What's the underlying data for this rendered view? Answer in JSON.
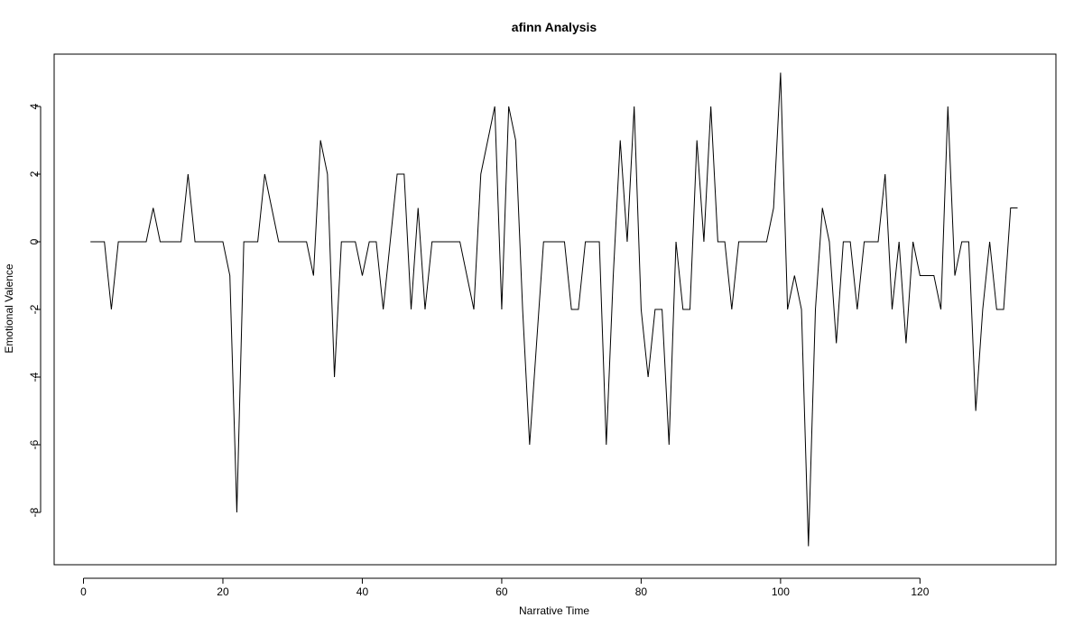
{
  "chart_data": {
    "type": "line",
    "title": "afinn Analysis",
    "xlabel": "Narrative Time",
    "ylabel": "Emotional Valence",
    "xlim": [
      0,
      140
    ],
    "ylim": [
      -9.5,
      5.5
    ],
    "xticks": [
      0,
      20,
      40,
      60,
      80,
      100,
      120
    ],
    "xtick_labels": [
      "0",
      "20",
      "40",
      "60",
      "80",
      "100",
      "120"
    ],
    "yticks": [
      -8,
      -6,
      -4,
      -2,
      0,
      2,
      4
    ],
    "ytick_labels": [
      "-8",
      "-6",
      "-4",
      "-2",
      "0",
      "2",
      "4"
    ],
    "grid": false,
    "legend": "none",
    "line_color": "#000000",
    "series": [
      {
        "x": [
          1,
          2,
          3,
          4,
          5,
          6,
          7,
          8,
          9,
          10,
          11,
          12,
          13,
          14,
          15,
          16,
          17,
          18,
          19,
          20,
          21,
          22,
          23,
          24,
          25,
          26,
          27,
          28,
          29,
          30,
          31,
          32,
          33,
          34,
          35,
          36,
          37,
          38,
          39,
          40,
          41,
          42,
          43,
          44,
          45,
          46,
          47,
          48,
          49,
          50,
          51,
          52,
          53,
          54,
          55,
          56,
          57,
          58,
          59,
          60,
          61,
          62,
          63,
          64,
          65,
          66,
          67,
          68,
          69,
          70,
          71,
          72,
          73,
          74,
          75,
          76,
          77,
          78,
          79,
          80,
          81,
          82,
          83,
          84,
          85,
          86,
          87,
          88,
          89,
          90,
          91,
          92,
          93,
          94,
          95,
          96,
          97,
          98,
          99,
          100,
          101,
          102,
          103,
          104,
          105,
          106,
          107,
          108,
          109,
          110,
          111,
          112,
          113,
          114,
          115,
          116,
          117,
          118,
          119,
          120,
          121,
          122,
          123,
          124,
          125,
          126,
          127,
          128,
          129,
          130,
          131,
          132,
          133,
          134
        ],
        "values": [
          0,
          0,
          0,
          -2,
          0,
          0,
          0,
          0,
          0,
          1,
          0,
          0,
          0,
          0,
          2,
          0,
          0,
          0,
          0,
          0,
          -1,
          -8,
          0,
          0,
          0,
          2,
          1,
          0,
          0,
          0,
          0,
          0,
          -1,
          3,
          2,
          -4,
          0,
          0,
          0,
          -1,
          0,
          0,
          -2,
          0,
          2,
          2,
          -2,
          1,
          -2,
          0,
          0,
          0,
          0,
          0,
          -1,
          -2,
          2,
          3,
          4,
          -2,
          4,
          3,
          -2,
          -6,
          -3,
          0,
          0,
          0,
          0,
          -2,
          -2,
          0,
          0,
          0,
          -6,
          -1,
          3,
          0,
          4,
          -2,
          -4,
          -2,
          -2,
          -6,
          0,
          -2,
          -2,
          3,
          0,
          4,
          0,
          0,
          -2,
          0,
          0,
          0,
          0,
          0,
          1,
          5,
          -2,
          -1,
          -2,
          -9,
          -2,
          1,
          0,
          -3,
          0,
          0,
          -2,
          0,
          0,
          0,
          2,
          -2,
          0,
          -3,
          0,
          -1,
          -1,
          -1,
          -2,
          4,
          -1,
          0,
          0,
          -5,
          -2,
          0,
          -2,
          -2,
          1,
          1
        ]
      }
    ]
  }
}
